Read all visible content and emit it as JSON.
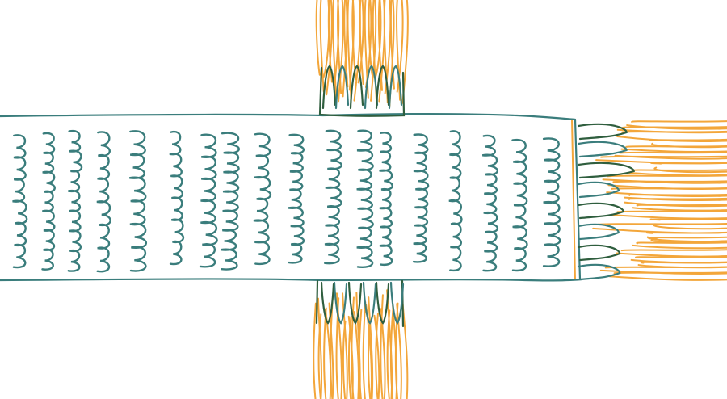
{
  "colors": {
    "background": "#ffffff",
    "teal": "#3a7d7c",
    "dark_green": "#2f5e3e",
    "orange": "#f3a63a"
  },
  "elements": {
    "main_channel": "teal-outline",
    "top_branch": "orange-bundle",
    "bottom_branch": "orange-bundle",
    "right_branch": "orange-bundle"
  }
}
